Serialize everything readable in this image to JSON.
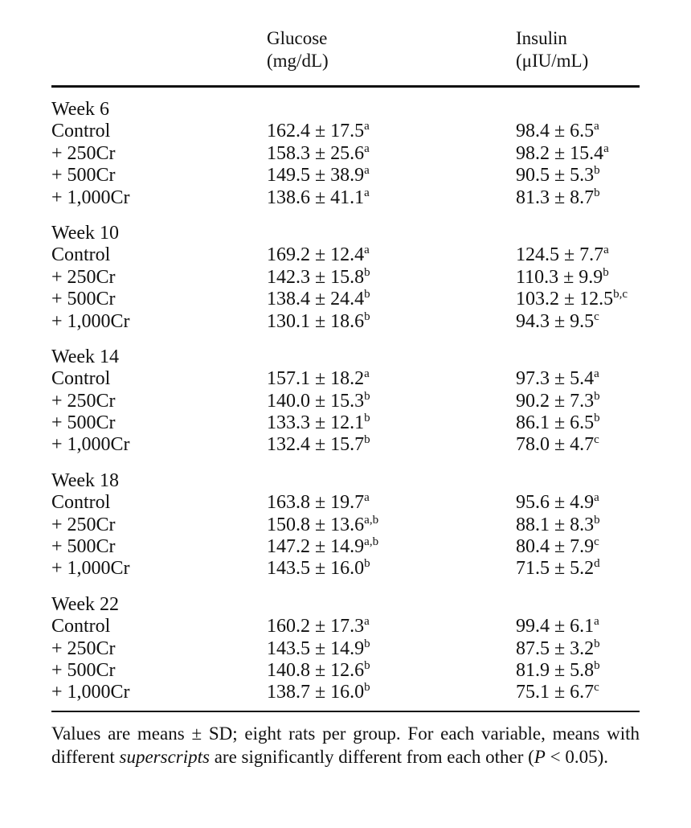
{
  "header": {
    "glucose": {
      "name": "Glucose",
      "unit": "(mg/dL)"
    },
    "insulin": {
      "name": "Insulin",
      "unit": "(μIU/mL)"
    }
  },
  "groups": [
    {
      "title": "Week 6",
      "rows": [
        {
          "label": "Control",
          "glucose": "162.4 ± 17.5",
          "glucose_sup": "a",
          "insulin": "98.4 ± 6.5",
          "insulin_sup": "a"
        },
        {
          "label": "+ 250Cr",
          "glucose": "158.3 ± 25.6",
          "glucose_sup": "a",
          "insulin": "98.2 ± 15.4",
          "insulin_sup": "a"
        },
        {
          "label": "+ 500Cr",
          "glucose": "149.5 ± 38.9",
          "glucose_sup": "a",
          "insulin": "90.5 ± 5.3",
          "insulin_sup": "b"
        },
        {
          "label": "+ 1,000Cr",
          "glucose": "138.6 ± 41.1",
          "glucose_sup": "a",
          "insulin": "81.3 ± 8.7",
          "insulin_sup": "b"
        }
      ]
    },
    {
      "title": "Week 10",
      "rows": [
        {
          "label": "Control",
          "glucose": "169.2 ± 12.4",
          "glucose_sup": "a",
          "insulin": "124.5 ± 7.7",
          "insulin_sup": "a"
        },
        {
          "label": "+ 250Cr",
          "glucose": "142.3 ± 15.8",
          "glucose_sup": "b",
          "insulin": "110.3 ± 9.9",
          "insulin_sup": "b"
        },
        {
          "label": "+ 500Cr",
          "glucose": "138.4 ± 24.4",
          "glucose_sup": "b",
          "insulin": "103.2 ± 12.5",
          "insulin_sup": "b,c"
        },
        {
          "label": "+ 1,000Cr",
          "glucose": "130.1 ± 18.6",
          "glucose_sup": "b",
          "insulin": "94.3 ± 9.5",
          "insulin_sup": "c"
        }
      ]
    },
    {
      "title": "Week 14",
      "rows": [
        {
          "label": "Control",
          "glucose": "157.1 ± 18.2",
          "glucose_sup": "a",
          "insulin": "97.3 ± 5.4",
          "insulin_sup": "a"
        },
        {
          "label": "+ 250Cr",
          "glucose": "140.0 ± 15.3",
          "glucose_sup": "b",
          "insulin": "90.2 ± 7.3",
          "insulin_sup": "b"
        },
        {
          "label": "+ 500Cr",
          "glucose": "133.3 ± 12.1",
          "glucose_sup": "b",
          "insulin": "86.1 ± 6.5",
          "insulin_sup": "b"
        },
        {
          "label": "+ 1,000Cr",
          "glucose": "132.4 ± 15.7",
          "glucose_sup": "b",
          "insulin": "78.0 ± 4.7",
          "insulin_sup": "c"
        }
      ]
    },
    {
      "title": "Week 18",
      "rows": [
        {
          "label": "Control",
          "glucose": "163.8 ± 19.7",
          "glucose_sup": "a",
          "insulin": "95.6 ± 4.9",
          "insulin_sup": "a"
        },
        {
          "label": "+ 250Cr",
          "glucose": "150.8 ± 13.6",
          "glucose_sup": "a,b",
          "insulin": "88.1 ± 8.3",
          "insulin_sup": "b"
        },
        {
          "label": "+ 500Cr",
          "glucose": "147.2 ± 14.9",
          "glucose_sup": "a,b",
          "insulin": "80.4 ± 7.9",
          "insulin_sup": "c"
        },
        {
          "label": "+ 1,000Cr",
          "glucose": "143.5 ± 16.0",
          "glucose_sup": "b",
          "insulin": "71.5 ± 5.2",
          "insulin_sup": "d"
        }
      ]
    },
    {
      "title": "Week 22",
      "rows": [
        {
          "label": "Control",
          "glucose": "160.2 ± 17.3",
          "glucose_sup": "a",
          "insulin": "99.4 ± 6.1",
          "insulin_sup": "a"
        },
        {
          "label": "+ 250Cr",
          "glucose": "143.5 ± 14.9",
          "glucose_sup": "b",
          "insulin": "87.5 ± 3.2",
          "insulin_sup": "b"
        },
        {
          "label": "+ 500Cr",
          "glucose": "140.8 ± 12.6",
          "glucose_sup": "b",
          "insulin": "81.9 ± 5.8",
          "insulin_sup": "b"
        },
        {
          "label": "+ 1,000Cr",
          "glucose": "138.7 ± 16.0",
          "glucose_sup": "b",
          "insulin": "75.1 ± 6.7",
          "insulin_sup": "c"
        }
      ]
    }
  ],
  "footnote": {
    "part1": "Values are means ± SD; eight rats per group. For each variable, means with different ",
    "emph": "superscripts",
    "part2": " are significantly different from each other (",
    "p_symbol": "P",
    "part3": " < 0.05)."
  }
}
